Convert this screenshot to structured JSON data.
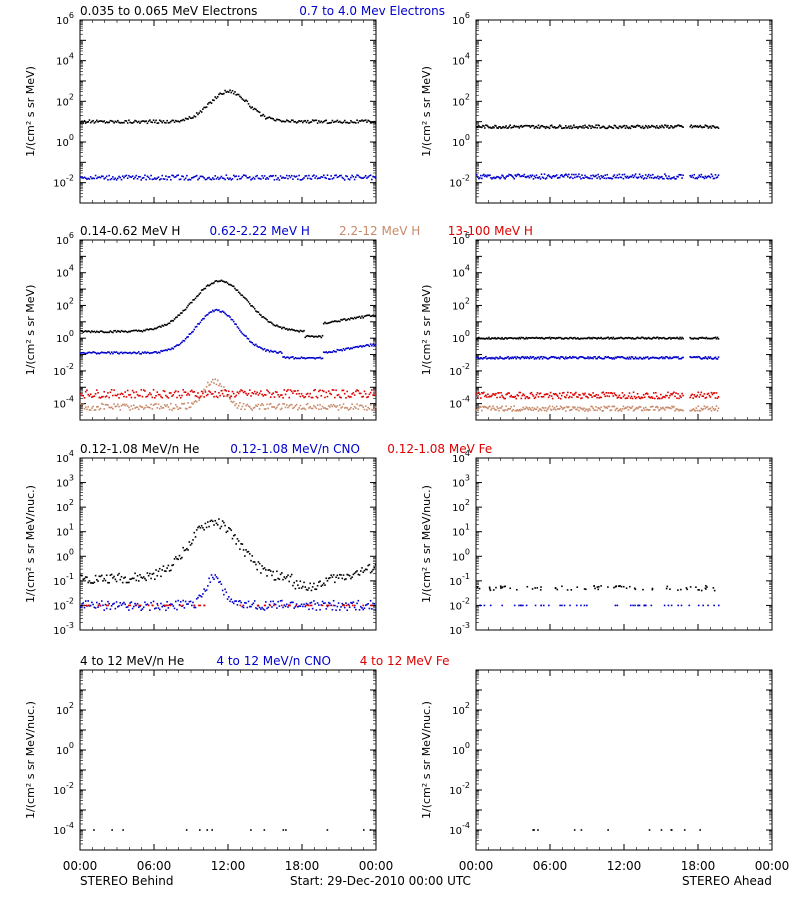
{
  "colors": {
    "black": "#000000",
    "blue": "#0000cc",
    "tan": "#c88a6a",
    "red": "#dd0000"
  },
  "footer": {
    "left": "STEREO Behind",
    "center": "Start: 29-Dec-2010 00:00 UTC",
    "right": "STEREO Ahead",
    "x_ticks": [
      "00:00",
      "06:00",
      "12:00",
      "18:00",
      "00:00"
    ]
  },
  "chart_data": [
    {
      "type": "scatter",
      "panel": "electrons",
      "scale": "log",
      "ylim_exp": [
        -3,
        6
      ],
      "ylabel": "1/(cm² s sr MeV)",
      "y_ticks": [
        {
          "b": "10",
          "e": "-2",
          "v": -2
        },
        {
          "b": "10",
          "e": "0",
          "v": 0
        },
        {
          "b": "10",
          "e": "2",
          "v": 2
        },
        {
          "b": "10",
          "e": "4",
          "v": 4
        },
        {
          "b": "10",
          "e": "6",
          "v": 6
        }
      ],
      "legend": [
        {
          "name": "0.035 to 0.065 MeV Electrons",
          "color": "black"
        },
        {
          "name": "0.7 to 4.0 Mev Electrons",
          "color": "blue"
        }
      ],
      "behind": [
        {
          "color": "black",
          "shape": "peak",
          "base": 1.0,
          "peak": 2.5,
          "center": 0.5,
          "width": 0.09,
          "noise": 0.08
        },
        {
          "color": "blue",
          "shape": "flat",
          "base": -1.75,
          "noise": 0.12
        }
      ],
      "ahead": [
        {
          "color": "black",
          "shape": "flat",
          "base": 0.75,
          "noise": 0.08,
          "end": 0.82,
          "gap": [
            0.7,
            0.72
          ]
        },
        {
          "color": "blue",
          "shape": "flat",
          "base": -1.7,
          "noise": 0.12,
          "end": 0.82,
          "gap": [
            0.7,
            0.72
          ]
        }
      ]
    },
    {
      "type": "scatter",
      "panel": "protons",
      "scale": "log",
      "ylim_exp": [
        -5,
        6
      ],
      "ylabel": "1/(cm² s sr MeV)",
      "y_ticks": [
        {
          "b": "10",
          "e": "-4",
          "v": -4
        },
        {
          "b": "10",
          "e": "-2",
          "v": -2
        },
        {
          "b": "10",
          "e": "0",
          "v": 0
        },
        {
          "b": "10",
          "e": "2",
          "v": 2
        },
        {
          "b": "10",
          "e": "4",
          "v": 4
        },
        {
          "b": "10",
          "e": "6",
          "v": 6
        }
      ],
      "legend": [
        {
          "name": "0.14-0.62 MeV H",
          "color": "black"
        },
        {
          "name": "0.62-2.22 MeV H",
          "color": "blue"
        },
        {
          "name": "2.2-12 MeV H",
          "color": "tan"
        },
        {
          "name": "13-100 MeV H",
          "color": "red"
        }
      ],
      "behind": [
        {
          "color": "black",
          "shape": "bump",
          "base": 0.4,
          "peak": 3.5,
          "center": 0.47,
          "width": 0.13,
          "tail": 0.9,
          "noise": 0.06
        },
        {
          "color": "blue",
          "shape": "bump",
          "base": -0.9,
          "peak": 1.7,
          "center": 0.46,
          "width": 0.1,
          "tail": -0.9,
          "noise": 0.06
        },
        {
          "color": "tan",
          "shape": "peak",
          "base": -4.2,
          "peak": -2.6,
          "center": 0.45,
          "width": 0.05,
          "noise": 0.2
        },
        {
          "color": "red",
          "shape": "flat",
          "base": -3.4,
          "noise": 0.25
        }
      ],
      "ahead": [
        {
          "color": "black",
          "shape": "flat",
          "base": 0.0,
          "noise": 0.05,
          "end": 0.82,
          "gap": [
            0.7,
            0.72
          ]
        },
        {
          "color": "blue",
          "shape": "flat",
          "base": -1.2,
          "noise": 0.07,
          "end": 0.82,
          "gap": [
            0.7,
            0.72
          ]
        },
        {
          "color": "tan",
          "shape": "flat",
          "base": -4.3,
          "noise": 0.15,
          "end": 0.82,
          "gap": [
            0.7,
            0.72
          ]
        },
        {
          "color": "red",
          "shape": "flat",
          "base": -3.5,
          "noise": 0.2,
          "end": 0.82,
          "gap": [
            0.7,
            0.72
          ]
        }
      ]
    },
    {
      "type": "scatter",
      "panel": "low-energy-ions",
      "scale": "log",
      "ylim_exp": [
        -3,
        4
      ],
      "ylabel": "1/(cm² s sr MeV/nuc.)",
      "y_ticks": [
        {
          "b": "10",
          "e": "-3",
          "v": -3
        },
        {
          "b": "10",
          "e": "-2",
          "v": -2
        },
        {
          "b": "10",
          "e": "-1",
          "v": -1
        },
        {
          "b": "10",
          "e": "0",
          "v": 0
        },
        {
          "b": "10",
          "e": "1",
          "v": 1
        },
        {
          "b": "10",
          "e": "2",
          "v": 2
        },
        {
          "b": "10",
          "e": "3",
          "v": 3
        },
        {
          "b": "10",
          "e": "4",
          "v": 4
        }
      ],
      "legend": [
        {
          "name": "0.12-1.08 MeV/n He",
          "color": "black"
        },
        {
          "name": "0.12-1.08 MeV/n CNO",
          "color": "blue"
        },
        {
          "name": "0.12-1.08 MeV Fe",
          "color": "red"
        }
      ],
      "behind": [
        {
          "color": "black",
          "shape": "bump",
          "base": -0.9,
          "peak": 1.4,
          "center": 0.45,
          "width": 0.12,
          "tail": -1.0,
          "noise": 0.2
        },
        {
          "color": "blue",
          "shape": "peak",
          "base": -2.0,
          "peak": -0.8,
          "center": 0.45,
          "width": 0.04,
          "noise": 0.2
        },
        {
          "color": "red",
          "shape": "flat",
          "base": -2.0,
          "noise": 0.0,
          "sparse": 0.5
        }
      ],
      "ahead": [
        {
          "color": "black",
          "shape": "flat",
          "base": -1.3,
          "noise": 0.1,
          "end": 0.82,
          "sparse": 0.6
        },
        {
          "color": "blue",
          "shape": "flat",
          "base": -2.0,
          "noise": 0.0,
          "end": 0.82,
          "sparse": 0.4
        }
      ]
    },
    {
      "type": "scatter",
      "panel": "high-energy-ions",
      "scale": "log",
      "ylim_exp": [
        -5,
        4
      ],
      "ylabel": "1/(cm² s sr MeV/nuc.)",
      "y_ticks": [
        {
          "b": "10",
          "e": "-4",
          "v": -4
        },
        {
          "b": "10",
          "e": "-2",
          "v": -2
        },
        {
          "b": "10",
          "e": "0",
          "v": 0
        },
        {
          "b": "10",
          "e": "2",
          "v": 2
        }
      ],
      "legend": [
        {
          "name": "4 to 12 MeV/n He",
          "color": "black"
        },
        {
          "name": "4 to 12 MeV/n CNO",
          "color": "blue"
        },
        {
          "name": "4 to 12 MeV Fe",
          "color": "red"
        }
      ],
      "behind": [
        {
          "color": "black",
          "shape": "flat",
          "base": -4.0,
          "noise": 0.0,
          "sparse": 0.12
        }
      ],
      "ahead": [
        {
          "color": "black",
          "shape": "flat",
          "base": -4.0,
          "noise": 0.0,
          "end": 0.82,
          "sparse": 0.1
        }
      ]
    }
  ]
}
